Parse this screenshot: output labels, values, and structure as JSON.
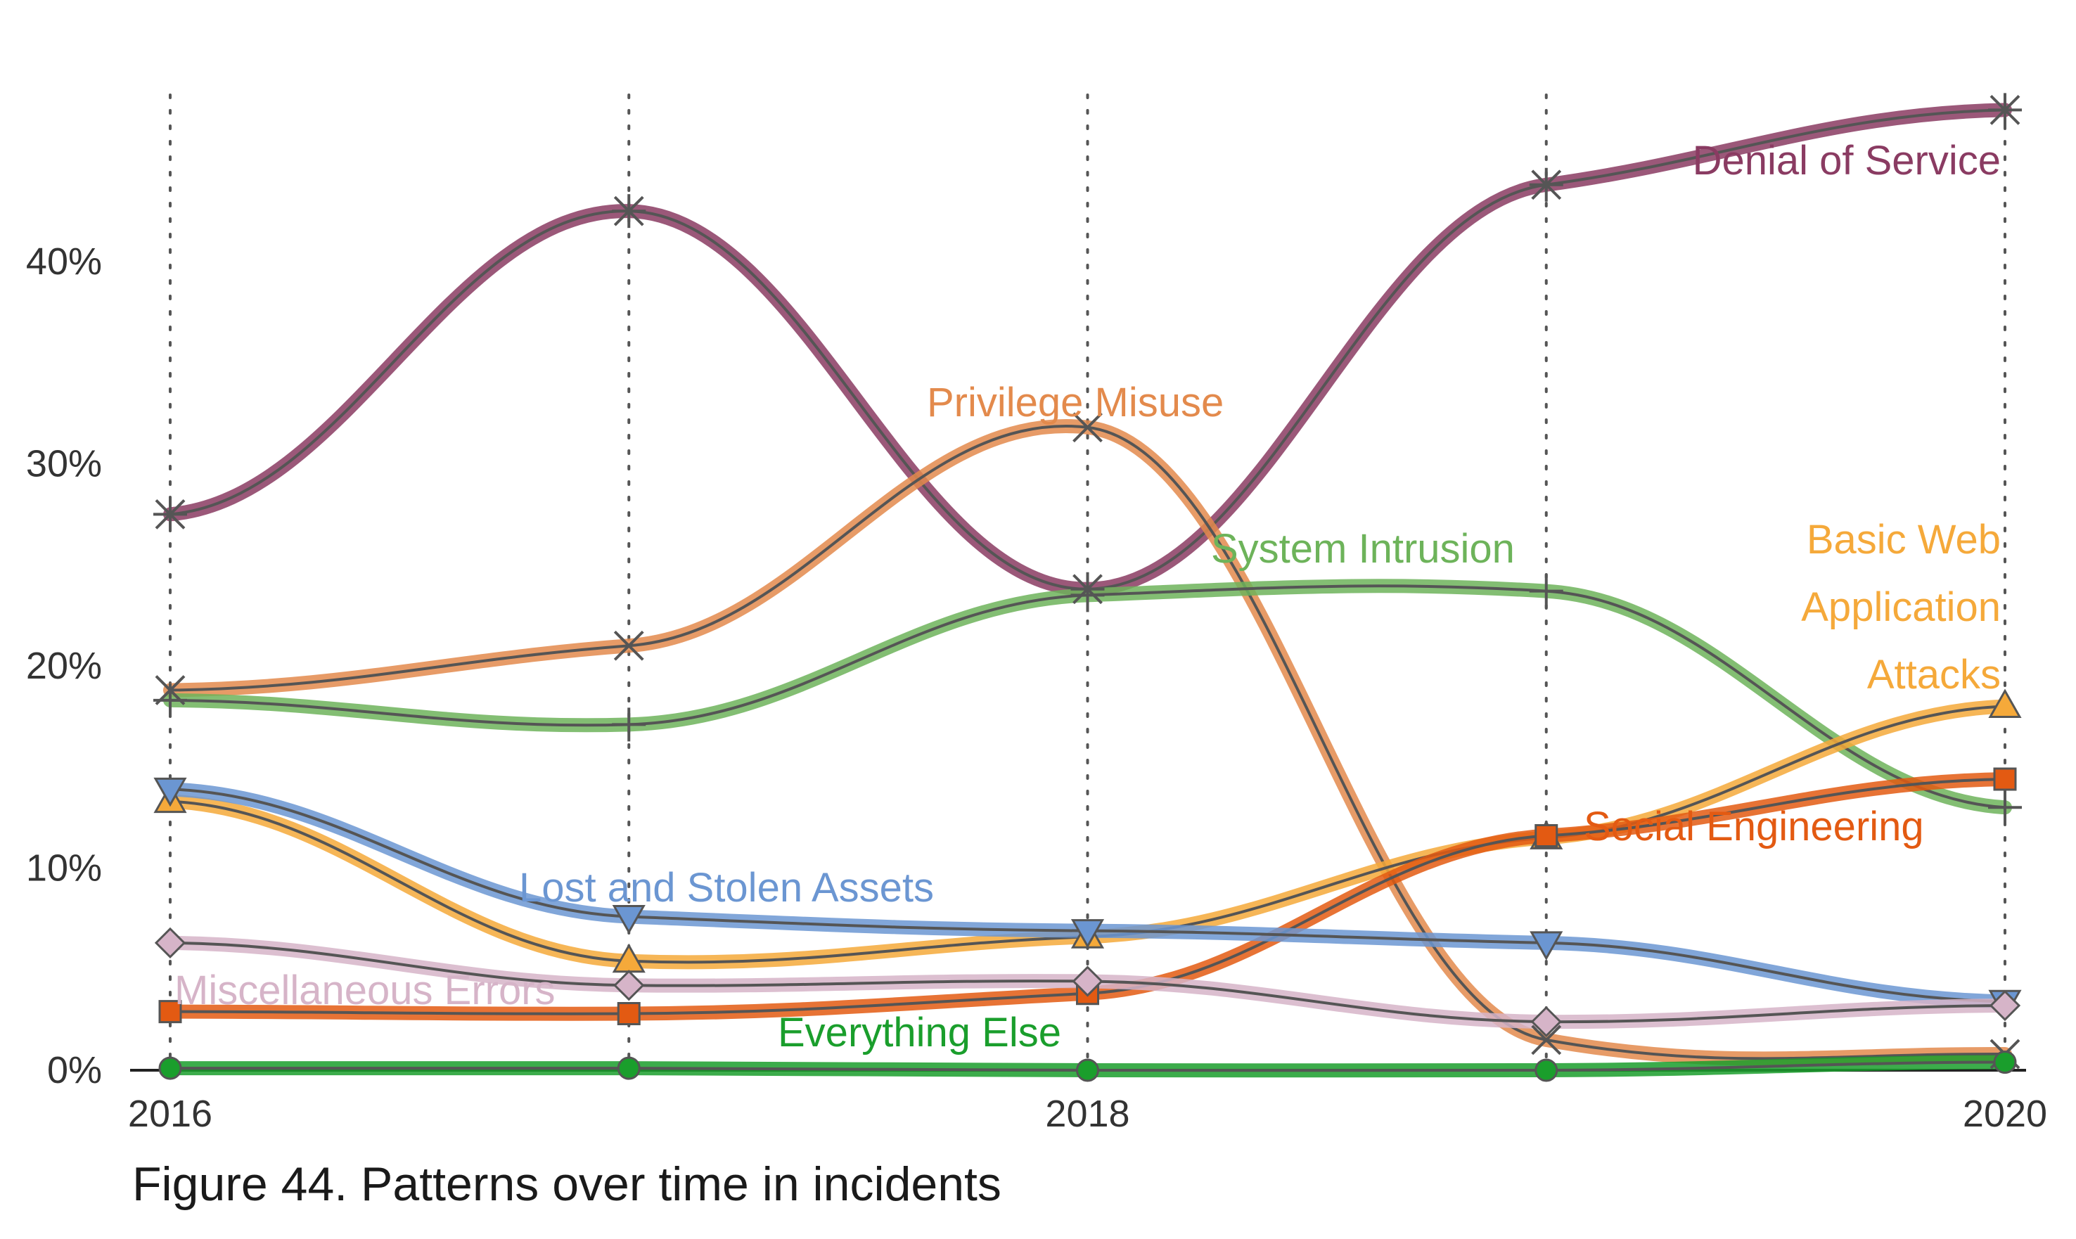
{
  "caption": "Figure 44. Patterns over time in incidents",
  "chart_data": {
    "type": "line",
    "x": [
      2016,
      2017,
      2018,
      2019,
      2020
    ],
    "x_tick_labels": [
      "2016",
      "",
      "2018",
      "",
      "2020"
    ],
    "y_tick_labels": [
      "0%",
      "10%",
      "20%",
      "30%",
      "40%"
    ],
    "y_ticks": [
      0,
      10,
      20,
      30,
      40
    ],
    "ylim": [
      0,
      48
    ],
    "grid": "vertical dotted at each year",
    "series": [
      {
        "name": "Denial of Service",
        "values": [
          27.5,
          42.5,
          23.8,
          43.8,
          47.5
        ],
        "color": "#8a3b62",
        "marker": "asterisk",
        "label_lines": [
          "Denial of Service"
        ]
      },
      {
        "name": "Privilege Misuse",
        "values": [
          18.8,
          21.0,
          31.8,
          1.5,
          0.8
        ],
        "color": "#e38a4c",
        "marker": "x",
        "label_lines": [
          "Privilege Misuse"
        ]
      },
      {
        "name": "System Intrusion",
        "values": [
          18.3,
          17.1,
          23.5,
          23.7,
          13.0
        ],
        "color": "#6db35a",
        "marker": "plus",
        "label_lines": [
          "System Intrusion"
        ]
      },
      {
        "name": "Basic Web Application Attacks",
        "values": [
          13.3,
          5.4,
          6.6,
          11.5,
          18.0
        ],
        "color": "#f5a93a",
        "marker": "triangle-up",
        "label_lines": [
          "Basic Web",
          "Application",
          "Attacks"
        ]
      },
      {
        "name": "Social Engineering",
        "values": [
          2.9,
          2.8,
          3.8,
          11.6,
          14.4
        ],
        "color": "#e35a12",
        "marker": "square",
        "label_lines": [
          "Social Engineering"
        ]
      },
      {
        "name": "Lost and Stolen Assets",
        "values": [
          13.9,
          7.6,
          6.9,
          6.3,
          3.4
        ],
        "color": "#6b96d2",
        "marker": "triangle-down",
        "label_lines": [
          "Lost and Stolen Assets"
        ]
      },
      {
        "name": "Miscellaneous Errors",
        "values": [
          6.3,
          4.2,
          4.4,
          2.4,
          3.2
        ],
        "color": "#d6b4c8",
        "marker": "diamond",
        "label_lines": [
          "Miscellaneous Errors"
        ]
      },
      {
        "name": "Everything Else",
        "values": [
          0.1,
          0.1,
          0.0,
          0.0,
          0.4
        ],
        "color": "#1a9e2c",
        "marker": "circle",
        "label_lines": [
          "Everything Else"
        ]
      }
    ]
  }
}
